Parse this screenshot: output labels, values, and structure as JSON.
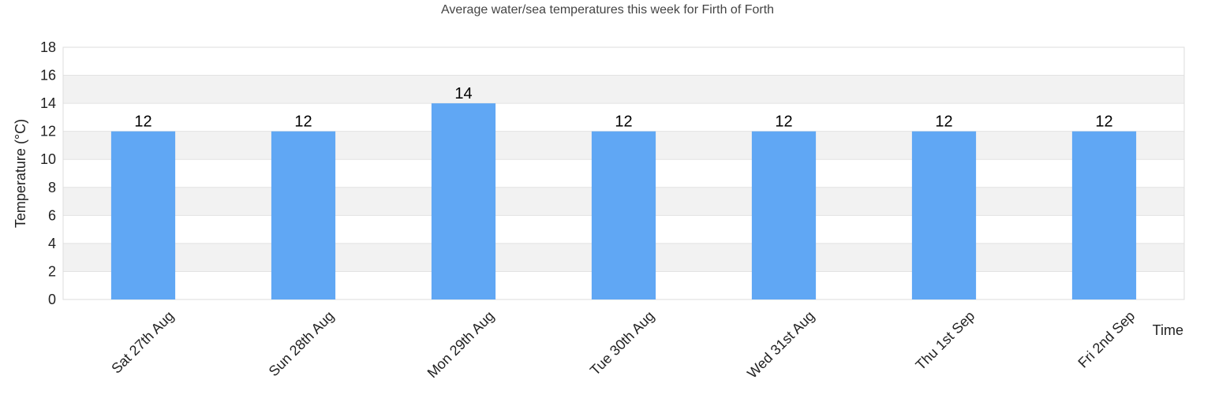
{
  "chart_data": {
    "type": "bar",
    "title": "Average water/sea temperatures this week for Firth of Forth",
    "xlabel": "Time",
    "ylabel": "Temperature (°C)",
    "categories": [
      "Sat 27th Aug",
      "Sun 28th Aug",
      "Mon 29th Aug",
      "Tue 30th Aug",
      "Wed 31st Aug",
      "Thu 1st Sep",
      "Fri 2nd Sep"
    ],
    "values": [
      12,
      12,
      14,
      12,
      12,
      12,
      12
    ],
    "ylim": [
      0,
      18
    ],
    "yticks": [
      0,
      2,
      4,
      6,
      8,
      10,
      12,
      14,
      16,
      18
    ],
    "grid": true,
    "bar_color": "#60a7f4",
    "band_color": "#f2f2f2",
    "data_labels": true
  }
}
